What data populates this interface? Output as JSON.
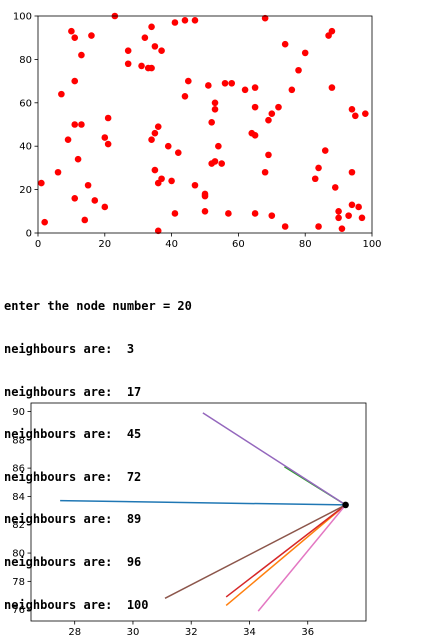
{
  "console": {
    "prompt": "enter the node number = 20",
    "neighbour_prefix": "neighbours are: ",
    "neighbours": [
      "3",
      "17",
      "45",
      "72",
      "89",
      "96",
      "100"
    ]
  },
  "chart_data": [
    {
      "type": "scatter",
      "title": "",
      "xlabel": "",
      "ylabel": "",
      "xlim": [
        0,
        100
      ],
      "ylim": [
        0,
        100
      ],
      "xticks": [
        "0",
        "20",
        "40",
        "60",
        "80",
        "100"
      ],
      "yticks": [
        "0",
        "20",
        "40",
        "60",
        "80",
        "100"
      ],
      "grid": false,
      "marker_color": "#ff0000",
      "points": [
        [
          1,
          23
        ],
        [
          2,
          5
        ],
        [
          6,
          28
        ],
        [
          7,
          64
        ],
        [
          9,
          43
        ],
        [
          10,
          93
        ],
        [
          11,
          70
        ],
        [
          11,
          16
        ],
        [
          11,
          90
        ],
        [
          11,
          50
        ],
        [
          12,
          34
        ],
        [
          13,
          50
        ],
        [
          13,
          82
        ],
        [
          14,
          6
        ],
        [
          15,
          22
        ],
        [
          16,
          91
        ],
        [
          17,
          15
        ],
        [
          20,
          12
        ],
        [
          20,
          44
        ],
        [
          21,
          53
        ],
        [
          21,
          41
        ],
        [
          23,
          100
        ],
        [
          27,
          84
        ],
        [
          27,
          78
        ],
        [
          31,
          77
        ],
        [
          32,
          90
        ],
        [
          33,
          76
        ],
        [
          34,
          95
        ],
        [
          34,
          76
        ],
        [
          34,
          43
        ],
        [
          35,
          29
        ],
        [
          35,
          46
        ],
        [
          35,
          86
        ],
        [
          36,
          49
        ],
        [
          36,
          23
        ],
        [
          36,
          1
        ],
        [
          37,
          25
        ],
        [
          37,
          84
        ],
        [
          39,
          40
        ],
        [
          40,
          24
        ],
        [
          41,
          9
        ],
        [
          41,
          97
        ],
        [
          42,
          37
        ],
        [
          44,
          98
        ],
        [
          44,
          63
        ],
        [
          45,
          70
        ],
        [
          47,
          22
        ],
        [
          47,
          98
        ],
        [
          50,
          10
        ],
        [
          50,
          18
        ],
        [
          50,
          17
        ],
        [
          51,
          68
        ],
        [
          52,
          32
        ],
        [
          52,
          51
        ],
        [
          53,
          57
        ],
        [
          53,
          60
        ],
        [
          53,
          33
        ],
        [
          54,
          40
        ],
        [
          55,
          32
        ],
        [
          56,
          69
        ],
        [
          57,
          9
        ],
        [
          58,
          69
        ],
        [
          62,
          66
        ],
        [
          64,
          46
        ],
        [
          65,
          45
        ],
        [
          65,
          58
        ],
        [
          65,
          67
        ],
        [
          65,
          9
        ],
        [
          68,
          99
        ],
        [
          68,
          28
        ],
        [
          69,
          52
        ],
        [
          69,
          36
        ],
        [
          70,
          55
        ],
        [
          70,
          8
        ],
        [
          72,
          58
        ],
        [
          74,
          3
        ],
        [
          74,
          87
        ],
        [
          76,
          66
        ],
        [
          78,
          75
        ],
        [
          80,
          83
        ],
        [
          83,
          25
        ],
        [
          84,
          30
        ],
        [
          84,
          3
        ],
        [
          86,
          38
        ],
        [
          87,
          91
        ],
        [
          88,
          93
        ],
        [
          88,
          67
        ],
        [
          89,
          21
        ],
        [
          90,
          10
        ],
        [
          90,
          7
        ],
        [
          91,
          2
        ],
        [
          93,
          8
        ],
        [
          94,
          28
        ],
        [
          94,
          13
        ],
        [
          94,
          57
        ],
        [
          95,
          54
        ],
        [
          96,
          12
        ],
        [
          97,
          7
        ],
        [
          98,
          55
        ]
      ]
    },
    {
      "type": "line",
      "title": "",
      "xlabel": "",
      "ylabel": "",
      "xlim": [
        26.5,
        38.0
      ],
      "ylim": [
        75.2,
        90.6
      ],
      "xticks": [
        28,
        30,
        32,
        34,
        36
      ],
      "yticks": [
        76,
        78,
        80,
        82,
        84,
        86,
        88,
        90
      ],
      "grid": false,
      "node": {
        "x": 37.3,
        "y": 83.4,
        "color": "#000000"
      },
      "series": [
        {
          "x": [
            27.5,
            37.3
          ],
          "y": [
            83.7,
            83.4
          ],
          "color": "#1f77b4"
        },
        {
          "x": [
            33.2,
            37.3
          ],
          "y": [
            76.3,
            83.4
          ],
          "color": "#ff7f0e"
        },
        {
          "x": [
            35.2,
            37.3
          ],
          "y": [
            86.1,
            83.4
          ],
          "color": "#2ca02c"
        },
        {
          "x": [
            33.2,
            37.3
          ],
          "y": [
            76.9,
            83.4
          ],
          "color": "#d62728"
        },
        {
          "x": [
            32.4,
            37.3
          ],
          "y": [
            89.9,
            83.4
          ],
          "color": "#9467bd"
        },
        {
          "x": [
            31.1,
            37.3
          ],
          "y": [
            76.8,
            83.4
          ],
          "color": "#8c564b"
        },
        {
          "x": [
            34.3,
            37.3
          ],
          "y": [
            75.9,
            83.4
          ],
          "color": "#e377c2"
        }
      ]
    }
  ]
}
